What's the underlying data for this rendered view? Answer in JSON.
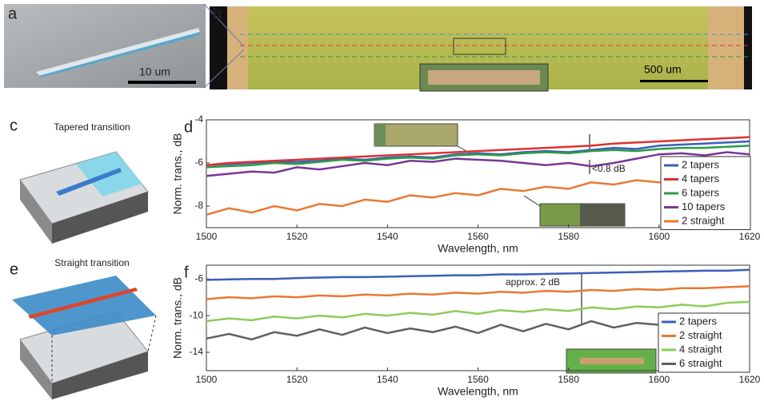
{
  "panel_labels": [
    "a",
    "b",
    "c",
    "d",
    "e",
    "f"
  ],
  "texts": {
    "scale_a": "10 um",
    "scale_b": "500 um",
    "caption_c": "Tapered transition",
    "caption_e": "Straight transition"
  },
  "chart_data": [
    {
      "type": "line",
      "panel": "d",
      "xlabel": "Wavelength, nm",
      "ylabel": "Norm. trans., dB",
      "annotations": [
        "<0.8 dB"
      ],
      "xlim": [
        1500,
        1620
      ],
      "xticks": [
        1500,
        1520,
        1540,
        1560,
        1580,
        1600,
        1620
      ],
      "ylim": [
        -9,
        -4
      ],
      "yticks": [
        -4,
        -6,
        -8
      ],
      "legend": "lower right",
      "x": [
        1500,
        1505,
        1510,
        1515,
        1520,
        1525,
        1530,
        1535,
        1540,
        1545,
        1550,
        1555,
        1560,
        1565,
        1570,
        1575,
        1580,
        1585,
        1590,
        1595,
        1600,
        1605,
        1610,
        1615,
        1620
      ],
      "series": [
        {
          "name": "2 tapers",
          "color": "#3a5fb8",
          "values": [
            -6.1,
            -6.05,
            -6.0,
            -5.95,
            -5.95,
            -5.9,
            -5.8,
            -5.85,
            -5.75,
            -5.7,
            -5.75,
            -5.6,
            -5.55,
            -5.6,
            -5.5,
            -5.45,
            -5.5,
            -5.4,
            -5.3,
            -5.35,
            -5.2,
            -5.15,
            -5.1,
            -5.05,
            -5.0
          ]
        },
        {
          "name": "4 tapers",
          "color": "#e03030",
          "values": [
            -6.1,
            -6.0,
            -5.95,
            -5.9,
            -5.85,
            -5.8,
            -5.75,
            -5.7,
            -5.65,
            -5.6,
            -5.55,
            -5.5,
            -5.45,
            -5.4,
            -5.35,
            -5.3,
            -5.25,
            -5.2,
            -5.1,
            -5.05,
            -5.0,
            -4.95,
            -4.9,
            -4.85,
            -4.8
          ]
        },
        {
          "name": "6 tapers",
          "color": "#2e9a48",
          "values": [
            -6.2,
            -6.15,
            -6.1,
            -6.0,
            -6.05,
            -5.95,
            -5.85,
            -5.9,
            -5.8,
            -5.75,
            -5.8,
            -5.65,
            -5.6,
            -5.65,
            -5.55,
            -5.5,
            -5.55,
            -5.45,
            -5.4,
            -5.45,
            -5.35,
            -5.3,
            -5.3,
            -5.25,
            -5.2
          ]
        },
        {
          "name": "10 tapers",
          "color": "#7a3596",
          "values": [
            -6.6,
            -6.5,
            -6.4,
            -6.45,
            -6.2,
            -6.3,
            -6.15,
            -6.0,
            -6.1,
            -5.9,
            -5.95,
            -5.8,
            -5.85,
            -5.9,
            -6.0,
            -6.1,
            -6.0,
            -6.15,
            -6.0,
            -5.8,
            -5.6,
            -5.55,
            -5.65,
            -5.5,
            -5.6
          ]
        },
        {
          "name": "2 straight",
          "color": "#ea7830",
          "values": [
            -8.4,
            -8.1,
            -8.3,
            -8.0,
            -8.2,
            -7.9,
            -8.0,
            -7.7,
            -7.8,
            -7.5,
            -7.6,
            -7.4,
            -7.5,
            -7.2,
            -7.3,
            -7.1,
            -7.2,
            -6.9,
            -7.0,
            -6.8,
            -6.9,
            -6.7,
            -6.8,
            -6.6,
            -6.7
          ]
        }
      ]
    },
    {
      "type": "line",
      "panel": "f",
      "xlabel": "Wavelength, nm",
      "ylabel": "Norm. trans., dB",
      "annotations": [
        "approx. 2 dB"
      ],
      "xlim": [
        1500,
        1620
      ],
      "xticks": [
        1500,
        1520,
        1540,
        1560,
        1580,
        1600,
        1620
      ],
      "ylim": [
        -16,
        -4.5
      ],
      "yticks": [
        -6,
        -10,
        -14
      ],
      "legend": "lower right",
      "x": [
        1500,
        1505,
        1510,
        1515,
        1520,
        1525,
        1530,
        1535,
        1540,
        1545,
        1550,
        1555,
        1560,
        1565,
        1570,
        1575,
        1580,
        1585,
        1590,
        1595,
        1600,
        1605,
        1610,
        1615,
        1620
      ],
      "series": [
        {
          "name": "2 tapers",
          "color": "#3a5fb8",
          "values": [
            -6.1,
            -6.05,
            -6.0,
            -6.0,
            -5.9,
            -5.85,
            -5.8,
            -5.8,
            -5.75,
            -5.7,
            -5.65,
            -5.6,
            -5.6,
            -5.5,
            -5.5,
            -5.45,
            -5.4,
            -5.35,
            -5.3,
            -5.25,
            -5.2,
            -5.15,
            -5.1,
            -5.1,
            -5.0
          ]
        },
        {
          "name": "2 straight",
          "color": "#ea7830",
          "values": [
            -8.2,
            -8.0,
            -8.1,
            -7.9,
            -8.0,
            -7.8,
            -7.9,
            -7.7,
            -7.8,
            -7.6,
            -7.7,
            -7.5,
            -7.6,
            -7.4,
            -7.5,
            -7.3,
            -7.4,
            -7.2,
            -7.3,
            -7.1,
            -7.2,
            -7.0,
            -7.0,
            -6.9,
            -6.8
          ]
        },
        {
          "name": "4 straight",
          "color": "#8dcc5a",
          "values": [
            -10.6,
            -10.3,
            -10.5,
            -10.1,
            -10.3,
            -10.0,
            -10.2,
            -9.8,
            -10.0,
            -9.7,
            -9.9,
            -9.5,
            -9.8,
            -9.4,
            -9.6,
            -9.3,
            -9.5,
            -9.1,
            -9.3,
            -9.0,
            -9.1,
            -8.8,
            -9.0,
            -8.6,
            -8.5
          ]
        },
        {
          "name": "6 straight",
          "color": "#606060",
          "values": [
            -12.5,
            -12.0,
            -12.6,
            -11.8,
            -12.2,
            -11.5,
            -12.1,
            -11.3,
            -11.9,
            -11.4,
            -11.8,
            -11.2,
            -11.9,
            -11.0,
            -11.7,
            -10.9,
            -11.5,
            -10.6,
            -11.3,
            -10.8,
            -11.0,
            -10.2,
            -10.9,
            -10.3,
            -10.0
          ]
        }
      ]
    }
  ]
}
